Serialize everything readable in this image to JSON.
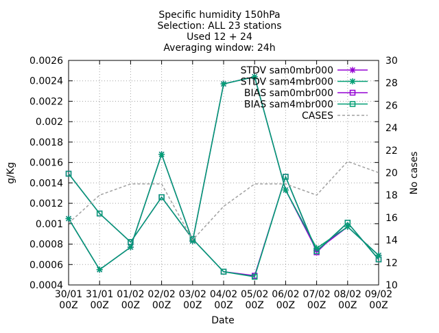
{
  "chart_data": {
    "type": "line",
    "title_lines": [
      "Specific humidity 150hPa",
      "Selection: ALL      23 stations",
      "Used 12 + 24",
      "Averaging window: 24h"
    ],
    "xlabel": "Date",
    "ylabel": "g/Kg",
    "y2label": "No cases",
    "categories": [
      [
        "30/01",
        "00Z"
      ],
      [
        "31/01",
        "00Z"
      ],
      [
        "01/02",
        "00Z"
      ],
      [
        "02/02",
        "00Z"
      ],
      [
        "03/02",
        "00Z"
      ],
      [
        "04/02",
        "00Z"
      ],
      [
        "05/02",
        "00Z"
      ],
      [
        "06/02",
        "00Z"
      ],
      [
        "07/02",
        "00Z"
      ],
      [
        "08/02",
        "00Z"
      ],
      [
        "09/02",
        "00Z"
      ]
    ],
    "ylim": [
      0.0004,
      0.0026
    ],
    "yticks": [
      "0.0004",
      "0.0006",
      "0.0008",
      "0.001",
      "0.0012",
      "0.0014",
      "0.0016",
      "0.0018",
      "0.002",
      "0.0022",
      "0.0024",
      "0.0026"
    ],
    "y2lim": [
      10,
      30
    ],
    "y2ticks": [
      "10",
      "12",
      "14",
      "16",
      "18",
      "20",
      "22",
      "24",
      "26",
      "28",
      "30"
    ],
    "legend_position": "top-right",
    "series": [
      {
        "name": "STDV sam0mbr000",
        "axis": "y",
        "marker": "star",
        "color": "#9400d3",
        "values": [
          0.00105,
          0.00055,
          0.00077,
          0.00168,
          0.00083,
          0.00237,
          0.00244,
          0.00133,
          0.00074,
          0.00097,
          0.00069
        ]
      },
      {
        "name": "STDV sam4mbr000",
        "axis": "y",
        "marker": "star",
        "color": "#009e73",
        "values": [
          0.00105,
          0.00055,
          0.00077,
          0.00168,
          0.00083,
          0.00237,
          0.00244,
          0.00133,
          0.00076,
          0.00097,
          0.00069
        ]
      },
      {
        "name": "BIAS sam0mbr000",
        "axis": "y",
        "marker": "square",
        "color": "#9400d3",
        "values": [
          0.00149,
          0.0011,
          0.00082,
          0.00126,
          0.00085,
          0.00053,
          0.00049,
          0.00146,
          0.00072,
          0.00101,
          0.00065
        ]
      },
      {
        "name": "BIAS sam4mbr000",
        "axis": "y",
        "marker": "square",
        "color": "#009e73",
        "values": [
          0.00149,
          0.0011,
          0.00082,
          0.00126,
          0.00085,
          0.00053,
          0.00048,
          0.00146,
          0.00073,
          0.00101,
          0.00065
        ]
      },
      {
        "name": "CASES",
        "axis": "y2",
        "marker": "none",
        "dashed": true,
        "color": "#a0a0a0",
        "values": [
          15.5,
          18,
          19,
          19,
          14,
          17,
          19,
          19,
          18,
          21,
          20
        ]
      }
    ]
  }
}
